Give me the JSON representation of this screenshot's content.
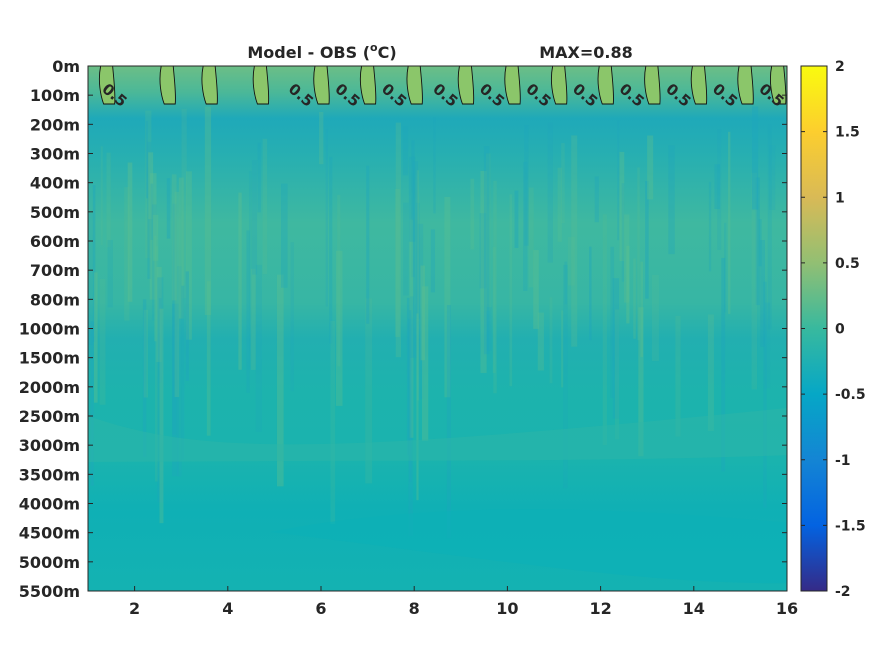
{
  "chart_data": {
    "type": "heatmap",
    "title": "Model - OBS (°C)",
    "title_parts": {
      "prefix": "Model - OBS (",
      "superscript": "o",
      "suffix": "C)"
    },
    "annotation": "MAX=0.88",
    "xlabel": "",
    "ylabel": "",
    "xlim": [
      1,
      16
    ],
    "x_ticks": [
      2,
      4,
      6,
      8,
      10,
      12,
      14,
      16
    ],
    "y_ticks": [
      "0m",
      "100m",
      "200m",
      "300m",
      "400m",
      "500m",
      "600m",
      "700m",
      "800m",
      "1000m",
      "1500m",
      "2000m",
      "2500m",
      "3000m",
      "3500m",
      "4000m",
      "4500m",
      "5000m",
      "5500m"
    ],
    "colorbar": {
      "range": [
        -2,
        2
      ],
      "ticks": [
        "2",
        "1.5",
        "1",
        "0.5",
        "0",
        "-0.5",
        "-1",
        "-1.5",
        "-2"
      ],
      "colormap": "parula"
    },
    "contour": {
      "level": "0.5",
      "label_x": [
        1.5,
        5.5,
        6.5,
        7.5,
        8.6,
        9.6,
        10.6,
        11.6,
        12.6,
        13.6,
        14.6,
        15.6
      ]
    },
    "warm_plumes_x": [
      1.4,
      2.7,
      3.6,
      4.7,
      6.0,
      7.0,
      8.0,
      9.1,
      10.1,
      11.1,
      12.1,
      13.1,
      14.1,
      15.1,
      15.8
    ],
    "depth_profile": [
      {
        "depth": "0m",
        "value": 0.6
      },
      {
        "depth": "100m",
        "value": 0.35
      },
      {
        "depth": "200m",
        "value": 0.05
      },
      {
        "depth": "300m",
        "value": 0.1
      },
      {
        "depth": "500m",
        "value": 0.28
      },
      {
        "depth": "800m",
        "value": 0.22
      },
      {
        "depth": "1000m",
        "value": 0.12
      },
      {
        "depth": "1500m",
        "value": 0.12
      },
      {
        "depth": "2500m",
        "value": 0.14
      },
      {
        "depth": "3500m",
        "value": 0.08
      },
      {
        "depth": "4500m",
        "value": 0.03
      },
      {
        "depth": "5500m",
        "value": 0.05
      }
    ]
  }
}
